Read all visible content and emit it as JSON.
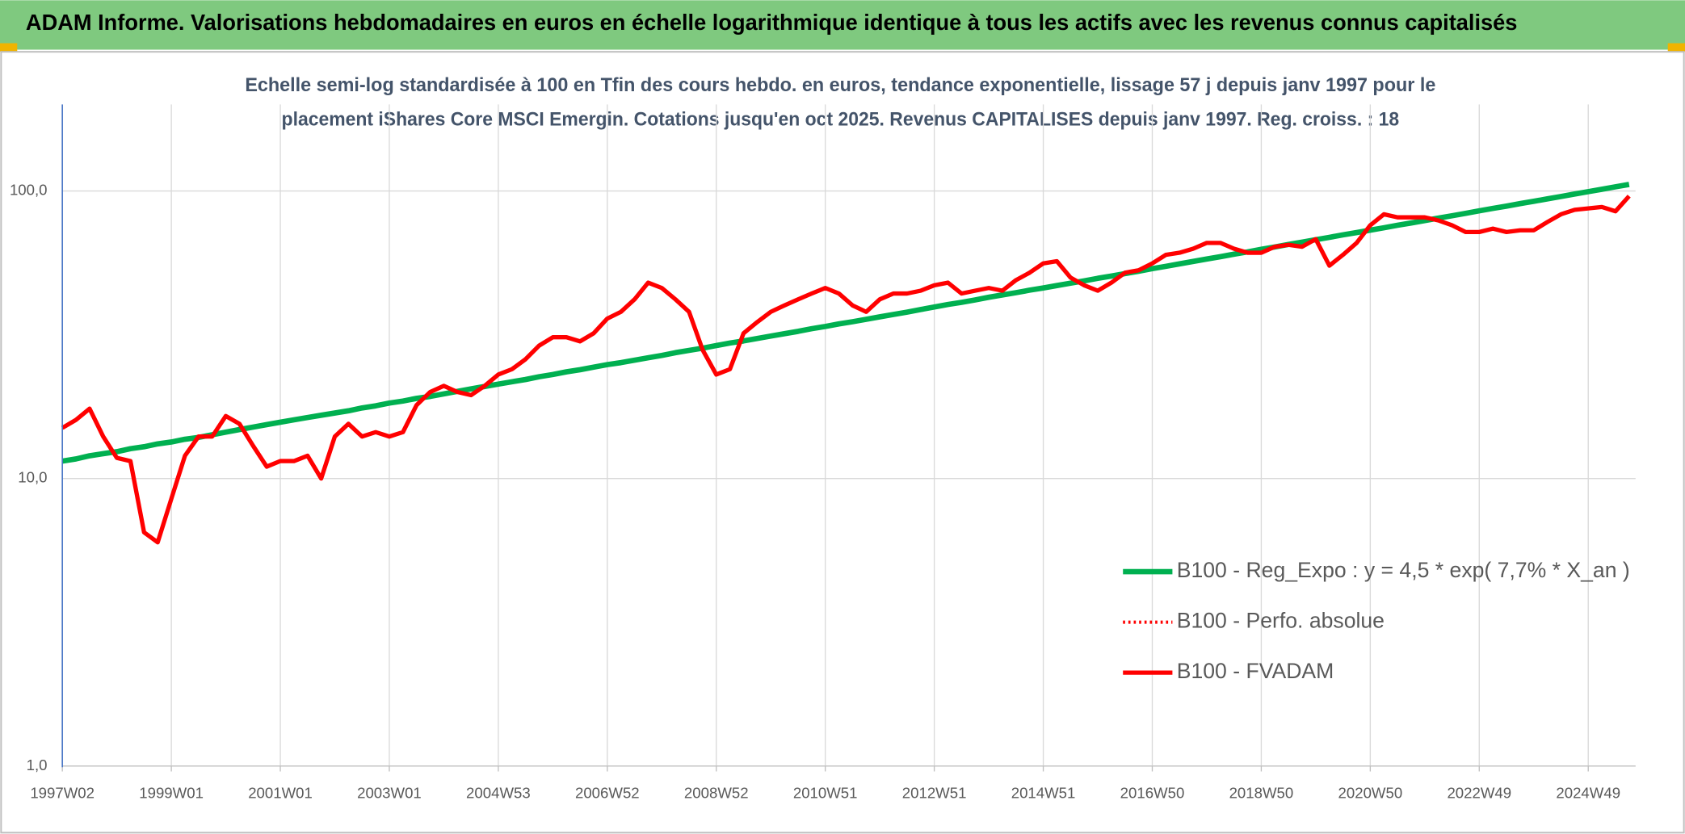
{
  "chart_data": {
    "type": "line",
    "title": "ADAM Informe. Valorisations hebdomadaires en euros en échelle logarithmique identique à tous les actifs avec les revenus connus capitalisés",
    "subtitle": [
      "Echelle semi-log standardisée à 100 en Tfin des cours hebdo. en euros, tendance exponentielle, lissage 57 j depuis janv 1997 pour le",
      "placement iShares Core MSCI Emergin. Cotations jusqu'en oct 2025. Revenus CAPITALISES depuis janv 1997. Reg. croiss. : 18"
    ],
    "log_scale": true,
    "grid": true,
    "legend": "lower right",
    "ylim": [
      1,
      200
    ],
    "yticks": [
      {
        "value": 1,
        "label": "1,0"
      },
      {
        "value": 10,
        "label": "10,0"
      },
      {
        "value": 100,
        "label": "100,0"
      }
    ],
    "categories": [
      "1997W02",
      null,
      null,
      null,
      null,
      null,
      null,
      null,
      "1999W01",
      null,
      null,
      null,
      null,
      null,
      null,
      null,
      "2001W01",
      null,
      null,
      null,
      null,
      null,
      null,
      null,
      "2003W01",
      null,
      null,
      null,
      null,
      null,
      null,
      null,
      "2004W53",
      null,
      null,
      null,
      null,
      null,
      null,
      null,
      "2006W52",
      null,
      null,
      null,
      null,
      null,
      null,
      null,
      "2008W52",
      null,
      null,
      null,
      null,
      null,
      null,
      null,
      "2010W51",
      null,
      null,
      null,
      null,
      null,
      null,
      null,
      "2012W51",
      null,
      null,
      null,
      null,
      null,
      null,
      null,
      "2014W51",
      null,
      null,
      null,
      null,
      null,
      null,
      null,
      "2016W50",
      null,
      null,
      null,
      null,
      null,
      null,
      null,
      "2018W50",
      null,
      null,
      null,
      null,
      null,
      null,
      null,
      "2020W50",
      null,
      null,
      null,
      null,
      null,
      null,
      null,
      "2022W49",
      null,
      null,
      null,
      null,
      null,
      null,
      null,
      "2024W49",
      null,
      null,
      null
    ],
    "series": [
      {
        "name": "B100 - Reg_Expo : y = 4,5 * exp( 7,7% *  X_an )",
        "color": "#00b050",
        "style": "solid",
        "values": [
          11.5,
          11.7,
          12.0,
          12.2,
          12.4,
          12.7,
          12.9,
          13.2,
          13.4,
          13.7,
          13.9,
          14.2,
          14.5,
          14.8,
          15.1,
          15.4,
          15.7,
          16.0,
          16.3,
          16.6,
          16.9,
          17.2,
          17.6,
          17.9,
          18.3,
          18.6,
          19.0,
          19.3,
          19.7,
          20.1,
          20.5,
          20.9,
          21.3,
          21.7,
          22.1,
          22.6,
          23.0,
          23.5,
          23.9,
          24.4,
          24.9,
          25.3,
          25.8,
          26.3,
          26.8,
          27.4,
          27.9,
          28.4,
          29.0,
          29.6,
          30.1,
          30.7,
          31.3,
          31.9,
          32.5,
          33.2,
          33.8,
          34.5,
          35.1,
          35.8,
          36.5,
          37.2,
          37.9,
          38.7,
          39.5,
          40.3,
          41.0,
          41.8,
          42.7,
          43.5,
          44.3,
          45.2,
          46.0,
          46.9,
          47.8,
          48.7,
          49.7,
          50.6,
          51.6,
          52.6,
          53.7,
          54.7,
          55.8,
          56.9,
          58.0,
          59.1,
          60.3,
          61.4,
          62.7,
          63.9,
          65.2,
          66.4,
          67.7,
          69.0,
          70.4,
          71.7,
          73.1,
          74.5,
          76.0,
          77.4,
          78.9,
          80.5,
          82.0,
          83.6,
          85.3,
          87.0,
          88.6,
          90.4,
          92.1,
          93.9,
          95.7,
          97.6,
          99.5,
          101.4,
          103.4,
          105.4
        ]
      },
      {
        "name": "B100 - Perfo. absolue",
        "color": "#ff0000",
        "style": "dotted",
        "values": [
          15,
          16,
          17.5,
          14,
          11.8,
          11.5,
          6.5,
          6,
          8.5,
          12,
          14,
          14,
          16.5,
          15.5,
          13,
          11,
          11.5,
          11.5,
          12,
          10,
          14,
          15.5,
          14,
          14.5,
          14,
          14.5,
          18,
          20,
          21,
          20,
          19.5,
          21,
          23,
          24,
          26,
          29,
          31,
          31,
          30,
          32,
          36,
          38,
          42,
          48,
          46,
          42,
          38,
          28,
          23,
          24,
          32,
          35,
          38,
          40,
          42,
          44,
          46,
          44,
          40,
          38,
          42,
          44,
          44,
          45,
          47,
          48,
          44,
          45,
          46,
          45,
          49,
          52,
          56,
          57,
          50,
          47,
          45,
          48,
          52,
          53,
          56,
          60,
          61,
          63,
          66,
          66,
          63,
          61,
          61,
          64,
          65,
          64,
          68,
          55,
          60,
          66,
          76,
          83,
          81,
          81,
          81,
          79,
          76,
          72,
          72,
          74,
          72,
          73,
          73,
          78,
          83,
          86,
          87,
          88,
          85,
          96
        ]
      },
      {
        "name": "B100 - FVADAM",
        "color": "#ff0000",
        "style": "solid",
        "values": [
          15,
          16,
          17.5,
          14,
          11.8,
          11.5,
          6.5,
          6,
          8.5,
          12,
          14,
          14,
          16.5,
          15.5,
          13,
          11,
          11.5,
          11.5,
          12,
          10,
          14,
          15.5,
          14,
          14.5,
          14,
          14.5,
          18,
          20,
          21,
          20,
          19.5,
          21,
          23,
          24,
          26,
          29,
          31,
          31,
          30,
          32,
          36,
          38,
          42,
          48,
          46,
          42,
          38,
          28,
          23,
          24,
          32,
          35,
          38,
          40,
          42,
          44,
          46,
          44,
          40,
          38,
          42,
          44,
          44,
          45,
          47,
          48,
          44,
          45,
          46,
          45,
          49,
          52,
          56,
          57,
          50,
          47,
          45,
          48,
          52,
          53,
          56,
          60,
          61,
          63,
          66,
          66,
          63,
          61,
          61,
          64,
          65,
          64,
          68,
          55,
          60,
          66,
          76,
          83,
          81,
          81,
          81,
          79,
          76,
          72,
          72,
          74,
          72,
          73,
          73,
          78,
          83,
          86,
          87,
          88,
          85,
          96
        ]
      }
    ]
  }
}
